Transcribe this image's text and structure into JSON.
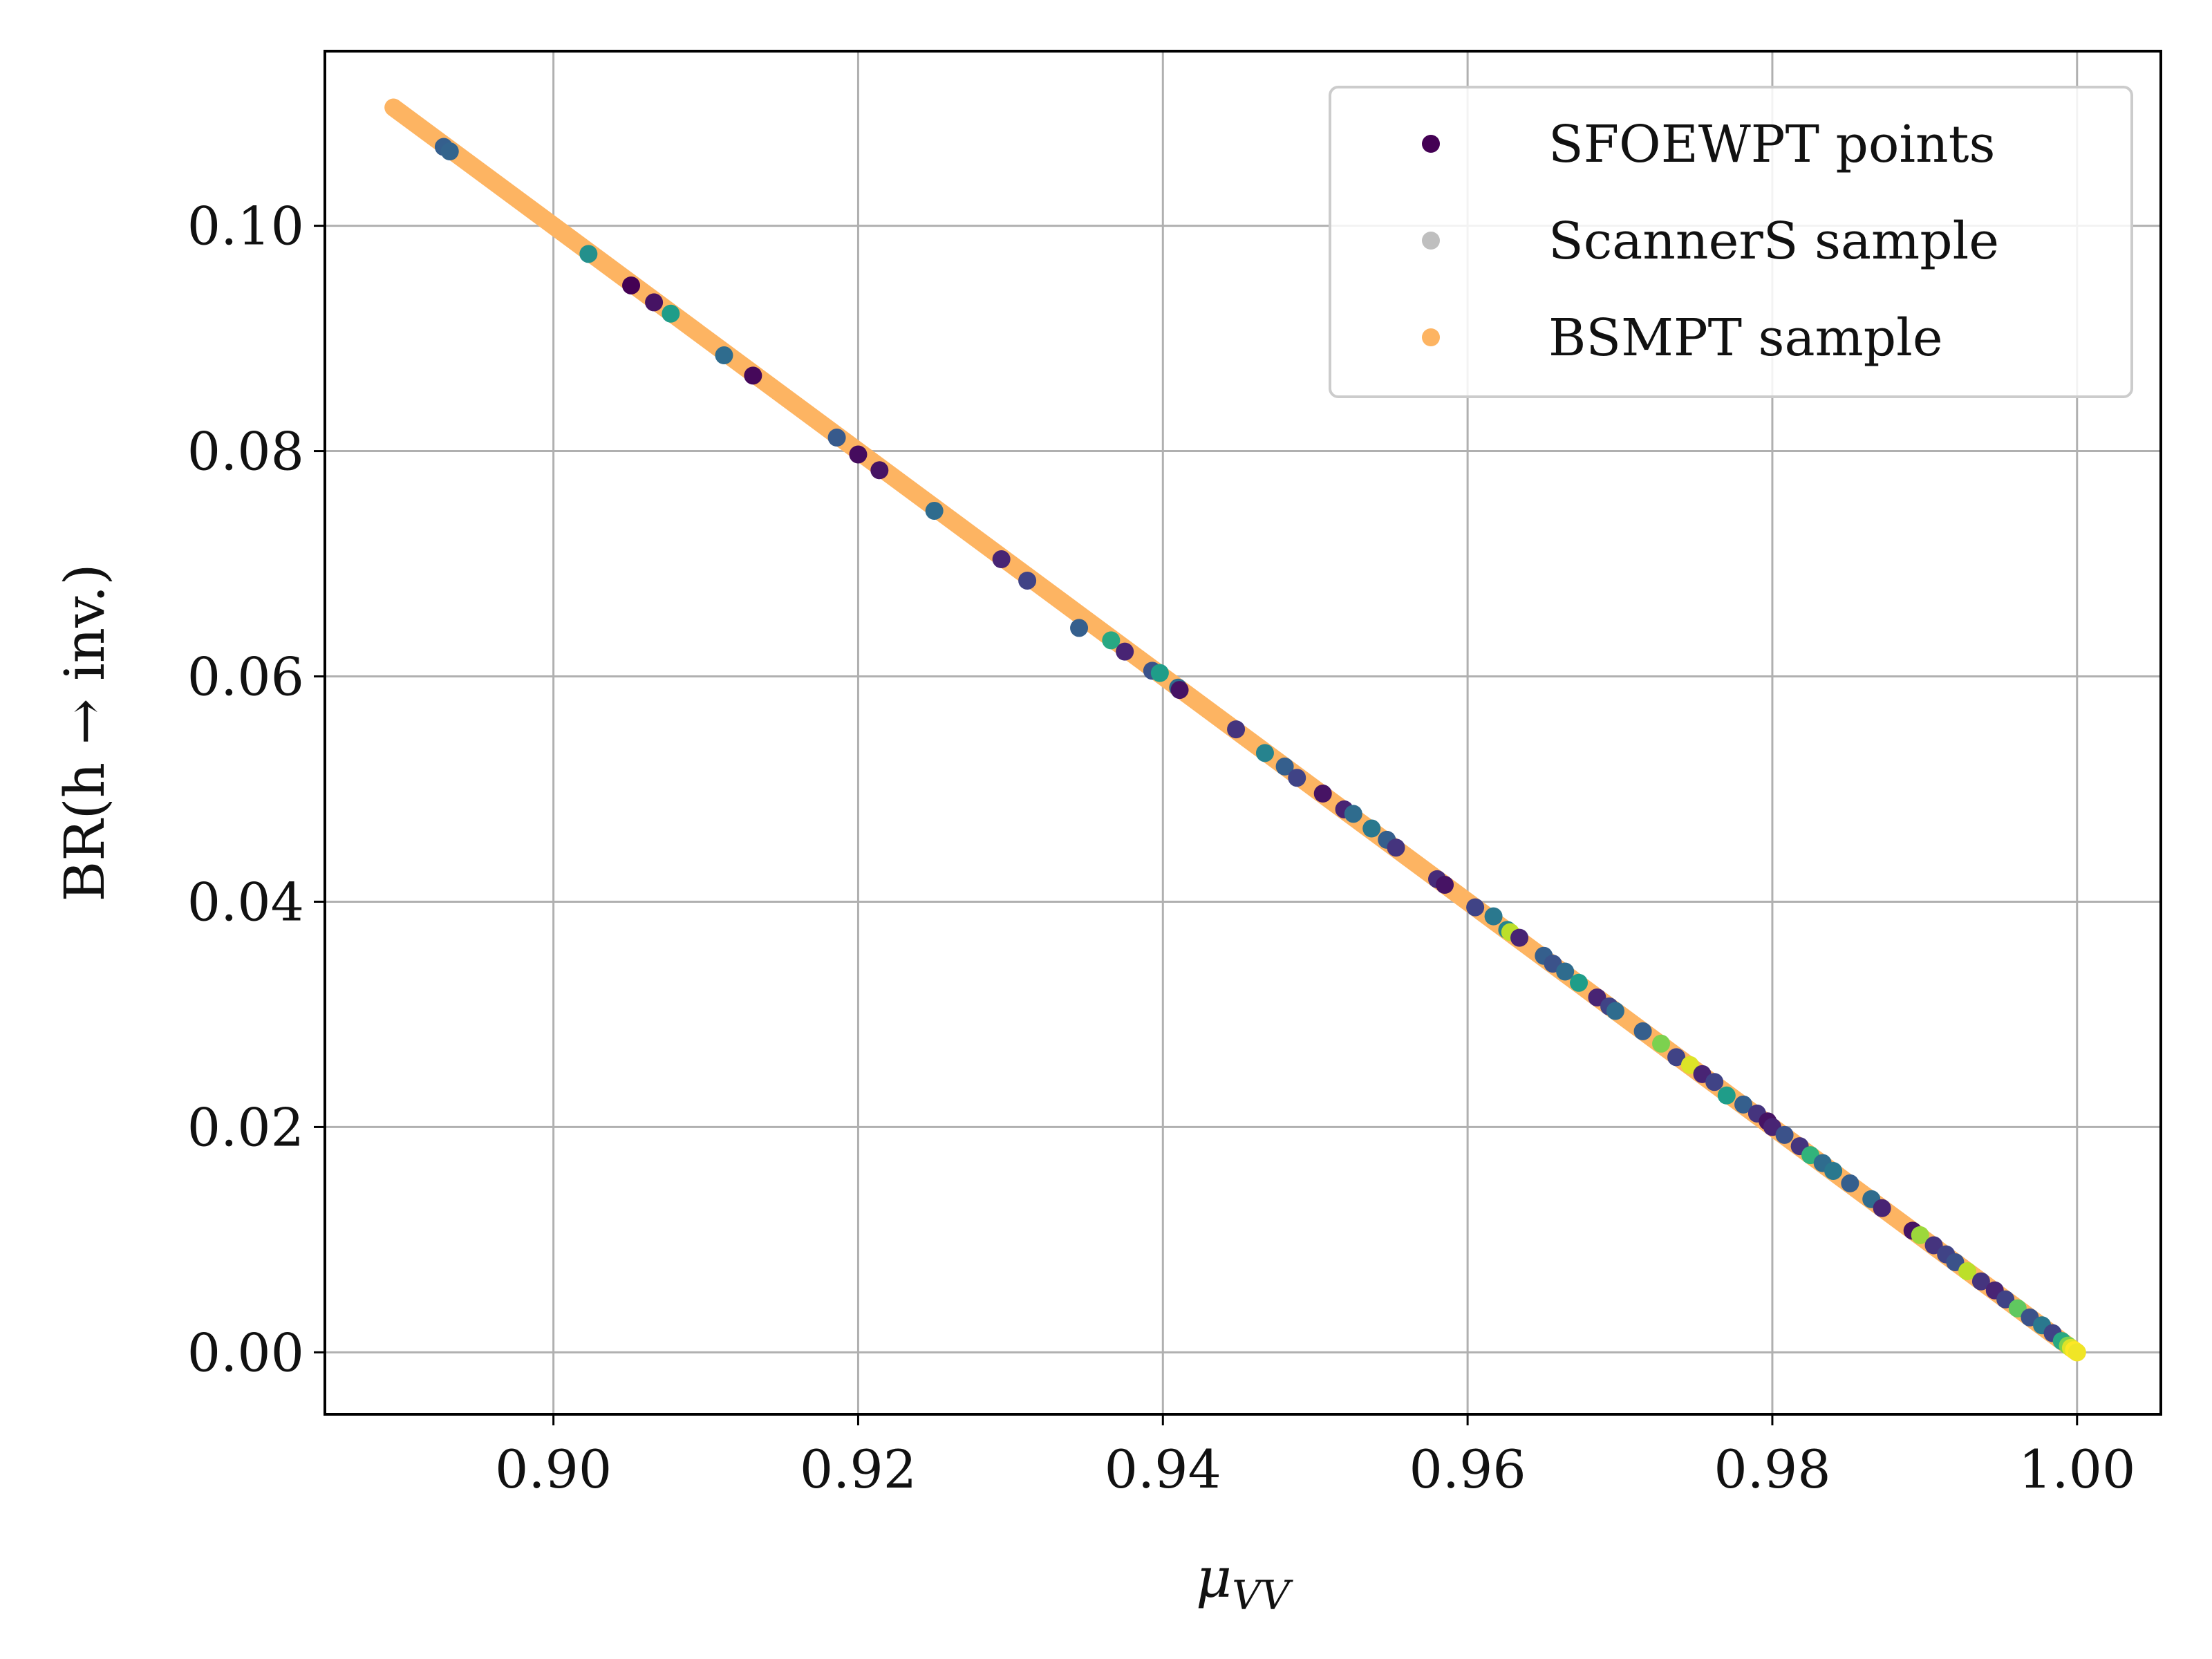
{
  "chart_data": {
    "type": "scatter",
    "title": "",
    "xlabel": "μ",
    "xlabel_sub": "VV",
    "ylabel": "BR(h → inv.)",
    "xlim": [
      0.885,
      1.0055
    ],
    "ylim": [
      -0.0055,
      0.1155
    ],
    "xticks": [
      0.9,
      0.92,
      0.94,
      0.96,
      0.98,
      1.0
    ],
    "xtick_labels": [
      "0.90",
      "0.92",
      "0.94",
      "0.96",
      "0.98",
      "1.00"
    ],
    "yticks": [
      0.0,
      0.02,
      0.04,
      0.06,
      0.08,
      0.1
    ],
    "ytick_labels": [
      "0.00",
      "0.02",
      "0.04",
      "0.06",
      "0.08",
      "0.10"
    ],
    "grid": true,
    "legend_position": "top-right",
    "legend": [
      {
        "label": "SFOEWPT points",
        "color": "#440154"
      },
      {
        "label": "ScannerS sample",
        "color": "#bfbfbf"
      },
      {
        "label": "BSMPT sample",
        "color": "#fdb462"
      }
    ],
    "bsmpt_band": {
      "x_start": 0.8895,
      "x_end": 1.0,
      "relation": "y = 1 - x"
    },
    "series": [
      {
        "name": "SFOEWPT points",
        "colormap": "viridis",
        "x": [
          0.8928,
          0.8932,
          0.9023,
          0.9051,
          0.9066,
          0.9077,
          0.9112,
          0.9131,
          0.9186,
          0.92,
          0.9214,
          0.925,
          0.9294,
          0.9311,
          0.9345,
          0.9366,
          0.9375,
          0.9393,
          0.9398,
          0.941,
          0.9411,
          0.9448,
          0.9467,
          0.948,
          0.9488,
          0.9505,
          0.9519,
          0.9525,
          0.9537,
          0.9547,
          0.9553,
          0.958,
          0.9585,
          0.9605,
          0.9617,
          0.9626,
          0.9628,
          0.9634,
          0.965,
          0.9656,
          0.9664,
          0.9673,
          0.9685,
          0.9693,
          0.9697,
          0.9715,
          0.9727,
          0.9737,
          0.9746,
          0.9754,
          0.9762,
          0.977,
          0.9781,
          0.979,
          0.9797,
          0.98,
          0.9808,
          0.9818,
          0.9825,
          0.9833,
          0.984,
          0.9851,
          0.9865,
          0.9872,
          0.9892,
          0.9897,
          0.9906,
          0.9914,
          0.992,
          0.9928,
          0.9937,
          0.9946,
          0.9953,
          0.9961,
          0.9969,
          0.9977,
          0.9984,
          0.999,
          0.9994,
          0.9996,
          0.9998,
          1.0
        ],
        "y": [
          0.107,
          0.1066,
          0.0975,
          0.0947,
          0.0932,
          0.0922,
          0.0885,
          0.0867,
          0.0812,
          0.0797,
          0.0783,
          0.0747,
          0.0704,
          0.0685,
          0.0643,
          0.0632,
          0.0622,
          0.0605,
          0.0603,
          0.059,
          0.0588,
          0.0553,
          0.0532,
          0.052,
          0.051,
          0.0496,
          0.0482,
          0.0478,
          0.0465,
          0.0455,
          0.0448,
          0.042,
          0.0415,
          0.0395,
          0.0387,
          0.0375,
          0.0373,
          0.0368,
          0.0352,
          0.0345,
          0.0338,
          0.0328,
          0.0315,
          0.0307,
          0.0303,
          0.0285,
          0.0274,
          0.0262,
          0.0255,
          0.0247,
          0.024,
          0.0228,
          0.022,
          0.0212,
          0.0205,
          0.02,
          0.0193,
          0.0183,
          0.0175,
          0.0168,
          0.0161,
          0.015,
          0.0136,
          0.0128,
          0.0108,
          0.0104,
          0.0095,
          0.0087,
          0.008,
          0.0072,
          0.0063,
          0.0055,
          0.0047,
          0.0039,
          0.0031,
          0.0024,
          0.0017,
          0.001,
          0.0006,
          0.0004,
          0.0002,
          0.0
        ],
        "c": [
          0.3,
          0.32,
          0.5,
          0.0,
          0.05,
          0.55,
          0.35,
          0.02,
          0.28,
          0.03,
          0.05,
          0.35,
          0.1,
          0.2,
          0.3,
          0.6,
          0.1,
          0.25,
          0.55,
          0.35,
          0.05,
          0.15,
          0.45,
          0.3,
          0.2,
          0.05,
          0.1,
          0.35,
          0.4,
          0.3,
          0.15,
          0.12,
          0.05,
          0.2,
          0.4,
          0.45,
          0.9,
          0.1,
          0.3,
          0.25,
          0.35,
          0.55,
          0.1,
          0.2,
          0.35,
          0.3,
          0.8,
          0.2,
          0.95,
          0.1,
          0.2,
          0.55,
          0.3,
          0.15,
          0.05,
          0.1,
          0.25,
          0.15,
          0.65,
          0.35,
          0.4,
          0.3,
          0.35,
          0.1,
          0.05,
          0.85,
          0.15,
          0.2,
          0.25,
          0.9,
          0.15,
          0.1,
          0.2,
          0.75,
          0.25,
          0.4,
          0.2,
          0.6,
          0.8,
          0.95,
          1.0,
          0.98
        ]
      }
    ]
  }
}
